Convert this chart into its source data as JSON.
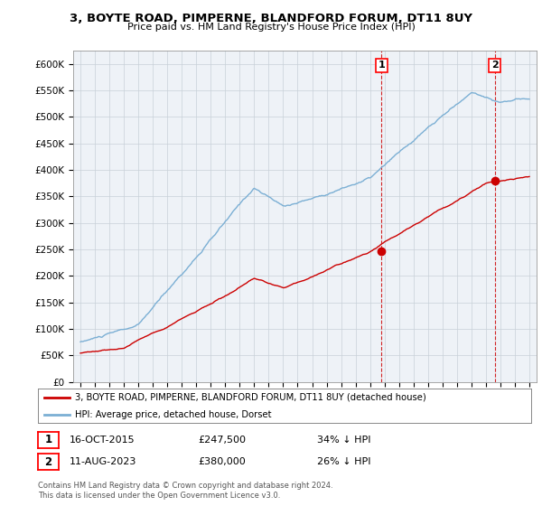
{
  "title": "3, BOYTE ROAD, PIMPERNE, BLANDFORD FORUM, DT11 8UY",
  "subtitle": "Price paid vs. HM Land Registry's House Price Index (HPI)",
  "ylabel_ticks": [
    "£0",
    "£50K",
    "£100K",
    "£150K",
    "£200K",
    "£250K",
    "£300K",
    "£350K",
    "£400K",
    "£450K",
    "£500K",
    "£550K",
    "£600K"
  ],
  "ylim": [
    0,
    620000
  ],
  "xlim_start": 1994.5,
  "xlim_end": 2026.5,
  "hpi_color": "#7bafd4",
  "price_color": "#cc0000",
  "marker1_x": 2015.79,
  "marker1_y": 247500,
  "marker2_x": 2023.61,
  "marker2_y": 380000,
  "legend_price_label": "3, BOYTE ROAD, PIMPERNE, BLANDFORD FORUM, DT11 8UY (detached house)",
  "legend_hpi_label": "HPI: Average price, detached house, Dorset",
  "annotation1_num": "1",
  "annotation1_date": "16-OCT-2015",
  "annotation1_price": "£247,500",
  "annotation1_pct": "34% ↓ HPI",
  "annotation2_num": "2",
  "annotation2_date": "11-AUG-2023",
  "annotation2_price": "£380,000",
  "annotation2_pct": "26% ↓ HPI",
  "footer": "Contains HM Land Registry data © Crown copyright and database right 2024.\nThis data is licensed under the Open Government Licence v3.0.",
  "background_color": "#ffffff",
  "plot_bg_color": "#eef2f7",
  "grid_color": "#c8d0d8"
}
